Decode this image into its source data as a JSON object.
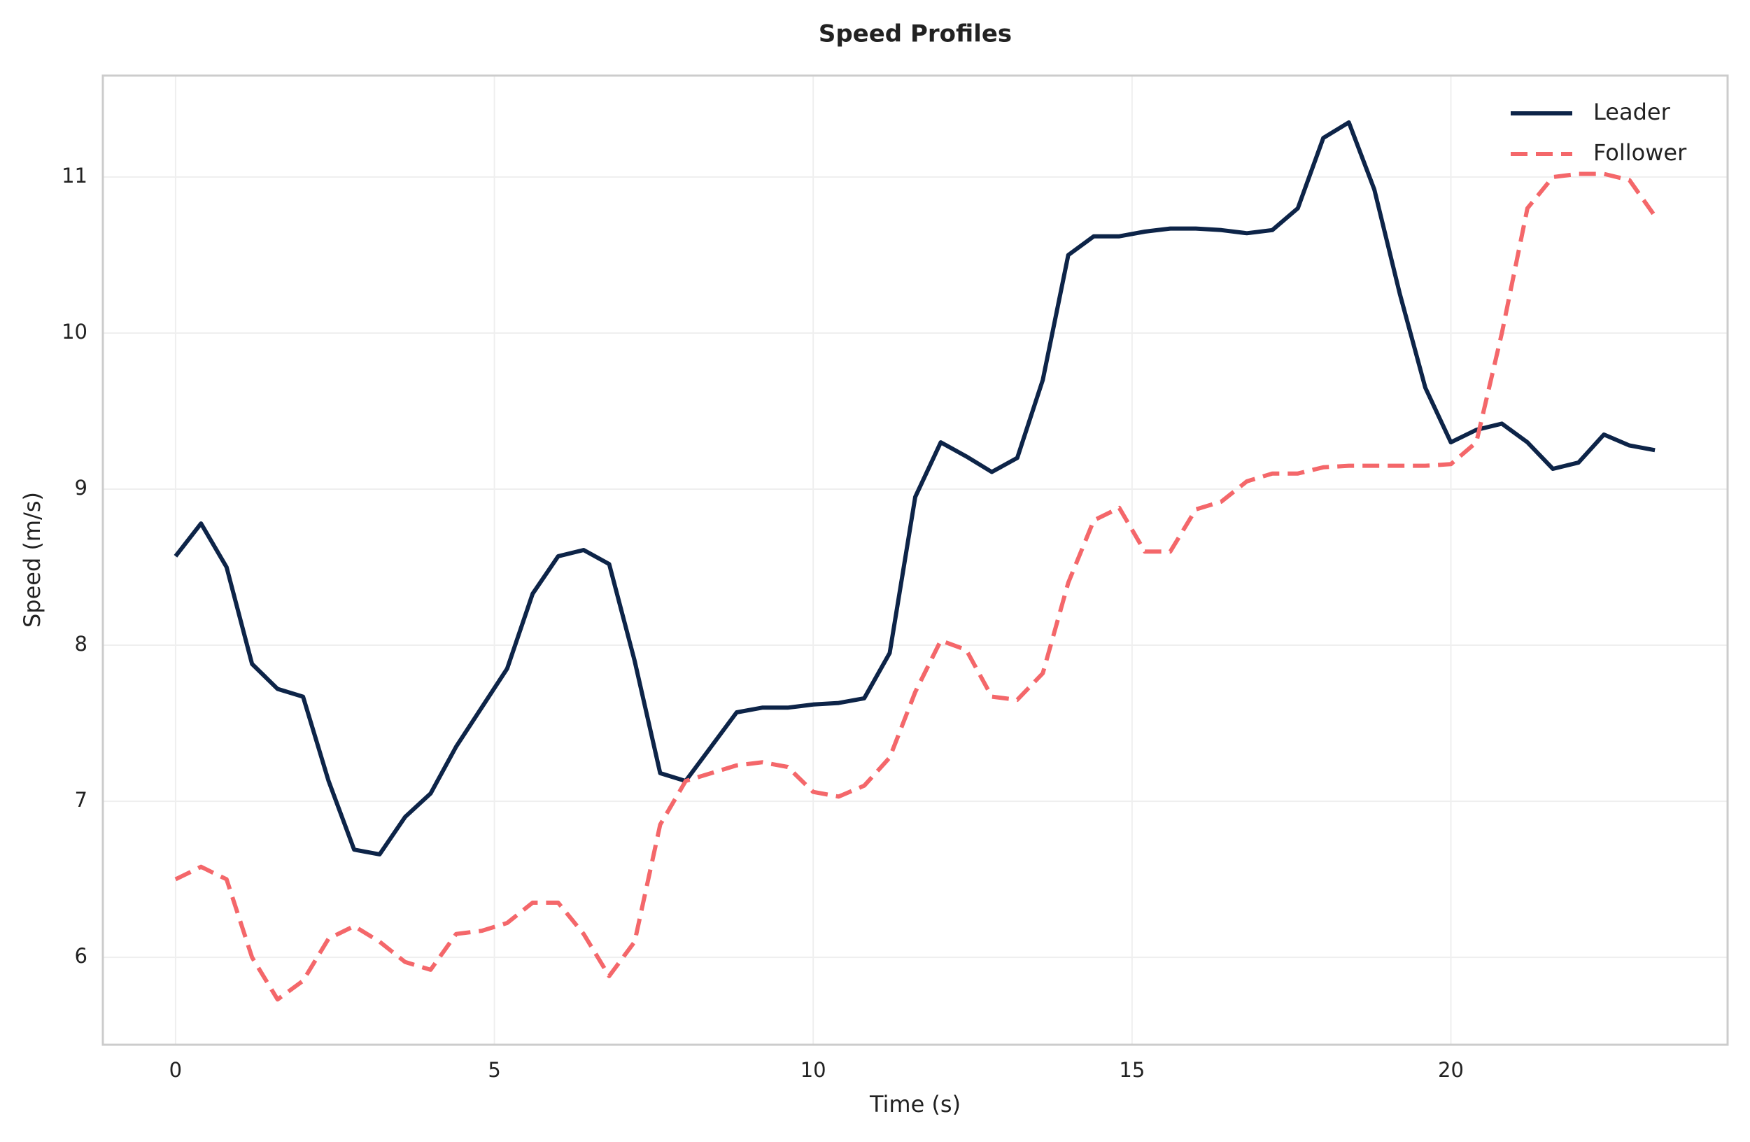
{
  "chart_data": {
    "type": "line",
    "title": "Speed Profiles",
    "x_label": "Time (s)",
    "y_label": "Speed (m/s)",
    "x": [
      0,
      0.4,
      0.8,
      1.2,
      1.6,
      2.0,
      2.4,
      2.8,
      3.2,
      3.6,
      4.0,
      4.4,
      4.8,
      5.2,
      5.6,
      6.0,
      6.4,
      6.8,
      7.2,
      7.6,
      8.0,
      8.4,
      8.8,
      9.2,
      9.6,
      10.0,
      10.4,
      10.8,
      11.2,
      11.6,
      12.0,
      12.4,
      12.8,
      13.2,
      13.6,
      14.0,
      14.4,
      14.8,
      15.2,
      15.6,
      16.0,
      16.4,
      16.8,
      17.2,
      17.6,
      18.0,
      18.4,
      18.8,
      19.2,
      19.6,
      20.0,
      20.4,
      20.8,
      21.2,
      21.6,
      22.0,
      22.4,
      22.8,
      23.2
    ],
    "series": [
      {
        "name": "Leader",
        "color": "#0d2448",
        "dash": false,
        "values": [
          8.57,
          8.78,
          8.5,
          7.88,
          7.72,
          7.67,
          7.13,
          6.69,
          6.66,
          6.9,
          7.05,
          7.35,
          7.6,
          7.85,
          8.33,
          8.57,
          8.61,
          8.52,
          7.9,
          7.18,
          7.13,
          7.35,
          7.57,
          7.6,
          7.6,
          7.62,
          7.63,
          7.66,
          7.95,
          8.95,
          9.3,
          9.21,
          9.11,
          9.2,
          9.7,
          10.5,
          10.62,
          10.62,
          10.65,
          10.67,
          10.67,
          10.66,
          10.64,
          10.66,
          10.8,
          11.25,
          11.35,
          10.92,
          10.25,
          9.65,
          9.3,
          9.38,
          9.42,
          9.3,
          9.13,
          9.17,
          9.35,
          9.28,
          9.25
        ]
      },
      {
        "name": "Follower",
        "color": "#f4676a",
        "dash": true,
        "values": [
          6.5,
          6.58,
          6.5,
          6.0,
          5.73,
          5.85,
          6.12,
          6.2,
          6.1,
          5.97,
          5.92,
          6.15,
          6.17,
          6.22,
          6.35,
          6.35,
          6.15,
          5.88,
          6.1,
          6.85,
          7.13,
          7.18,
          7.23,
          7.25,
          7.22,
          7.06,
          7.03,
          7.1,
          7.28,
          7.7,
          8.03,
          7.97,
          7.67,
          7.65,
          7.82,
          8.4,
          8.8,
          8.88,
          8.6,
          8.6,
          8.87,
          8.92,
          9.05,
          9.1,
          9.1,
          9.14,
          9.15,
          9.15,
          9.15,
          9.15,
          9.16,
          9.3,
          10.0,
          10.8,
          11.0,
          11.02,
          11.02,
          10.98,
          10.75
        ]
      }
    ],
    "xlim": [
      -1.14,
      24.34
    ],
    "ylim": [
      5.44,
      11.65
    ],
    "xticks": [
      0,
      5,
      10,
      15,
      20
    ],
    "yticks": [
      6,
      7,
      8,
      9,
      10,
      11
    ],
    "grid": true,
    "legend": "upper right"
  }
}
